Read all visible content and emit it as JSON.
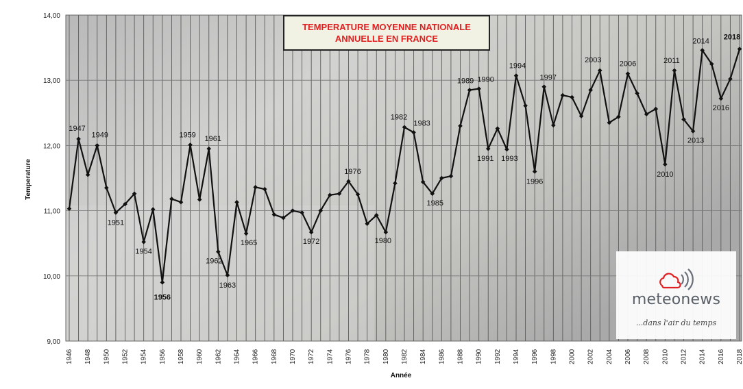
{
  "chart_data": {
    "type": "line",
    "title_lines": [
      "TEMPERATURE MOYENNE NATIONALE",
      "ANNUELLE EN FRANCE"
    ],
    "xlabel": "Année",
    "ylabel": "Temperature",
    "ylim": [
      9,
      14
    ],
    "yticks": [
      "9,00",
      "10,00",
      "11,00",
      "12,00",
      "13,00",
      "14,00"
    ],
    "grid": true,
    "x": [
      1946,
      1947,
      1948,
      1949,
      1950,
      1951,
      1952,
      1953,
      1954,
      1955,
      1956,
      1957,
      1958,
      1959,
      1960,
      1961,
      1962,
      1963,
      1964,
      1965,
      1966,
      1967,
      1968,
      1969,
      1970,
      1971,
      1972,
      1973,
      1974,
      1975,
      1976,
      1977,
      1978,
      1979,
      1980,
      1981,
      1982,
      1983,
      1984,
      1985,
      1986,
      1987,
      1988,
      1989,
      1990,
      1991,
      1992,
      1993,
      1994,
      1995,
      1996,
      1997,
      1998,
      1999,
      2000,
      2001,
      2002,
      2003,
      2004,
      2005,
      2006,
      2007,
      2008,
      2009,
      2010,
      2011,
      2012,
      2013,
      2014,
      2015,
      2016,
      2017,
      2018
    ],
    "series": [
      {
        "values": [
          11.03,
          12.1,
          11.55,
          12.0,
          11.35,
          10.97,
          11.1,
          11.26,
          10.52,
          11.02,
          9.9,
          11.18,
          11.13,
          12.01,
          11.17,
          11.95,
          10.37,
          10.01,
          11.13,
          10.65,
          11.36,
          11.33,
          10.94,
          10.89,
          11.0,
          10.97,
          10.67,
          11.0,
          11.24,
          11.26,
          11.45,
          11.25,
          10.8,
          10.93,
          10.67,
          11.42,
          12.28,
          12.2,
          11.44,
          11.26,
          11.5,
          11.53,
          12.3,
          12.85,
          12.87,
          11.95,
          12.26,
          11.94,
          13.07,
          12.61,
          11.6,
          12.9,
          12.31,
          12.77,
          12.74,
          12.45,
          12.85,
          13.15,
          12.35,
          12.44,
          13.1,
          12.8,
          12.48,
          12.56,
          11.71,
          13.15,
          12.4,
          12.22,
          13.46,
          13.25,
          12.72,
          13.02,
          13.48
        ]
      }
    ],
    "annotations": [
      {
        "year": 1947,
        "label": "1947",
        "color": "#111111"
      },
      {
        "year": 1949,
        "label": "1949",
        "color": "#111111"
      },
      {
        "year": 1951,
        "label": "1951",
        "color": "#111111"
      },
      {
        "year": 1954,
        "label": "1954",
        "color": "#111111"
      },
      {
        "year": 1956,
        "label": "1956",
        "color": "#2244cc"
      },
      {
        "year": 1959,
        "label": "1959",
        "color": "#111111"
      },
      {
        "year": 1961,
        "label": "1961",
        "color": "#111111"
      },
      {
        "year": 1962,
        "label": "1962",
        "color": "#111111"
      },
      {
        "year": 1963,
        "label": "1963",
        "color": "#111111"
      },
      {
        "year": 1965,
        "label": "1965",
        "color": "#111111"
      },
      {
        "year": 1972,
        "label": "1972",
        "color": "#111111"
      },
      {
        "year": 1976,
        "label": "1976",
        "color": "#111111"
      },
      {
        "year": 1980,
        "label": "1980",
        "color": "#111111"
      },
      {
        "year": 1982,
        "label": "1982",
        "color": "#111111"
      },
      {
        "year": 1983,
        "label": "1983",
        "color": "#111111"
      },
      {
        "year": 1985,
        "label": "1985",
        "color": "#111111"
      },
      {
        "year": 1989,
        "label": "1989",
        "color": "#111111"
      },
      {
        "year": 1990,
        "label": "1990",
        "color": "#111111"
      },
      {
        "year": 1991,
        "label": "1991",
        "color": "#111111"
      },
      {
        "year": 1993,
        "label": "1993",
        "color": "#111111"
      },
      {
        "year": 1994,
        "label": "1994",
        "color": "#111111"
      },
      {
        "year": 1996,
        "label": "1996",
        "color": "#111111"
      },
      {
        "year": 1997,
        "label": "1997",
        "color": "#111111"
      },
      {
        "year": 2003,
        "label": "2003",
        "color": "#111111"
      },
      {
        "year": 2006,
        "label": "2006",
        "color": "#111111"
      },
      {
        "year": 2010,
        "label": "2010",
        "color": "#111111"
      },
      {
        "year": 2011,
        "label": "2011",
        "color": "#111111"
      },
      {
        "year": 2013,
        "label": "2013",
        "color": "#111111"
      },
      {
        "year": 2014,
        "label": "2014",
        "color": "#111111"
      },
      {
        "year": 2016,
        "label": "2016",
        "color": "#111111"
      },
      {
        "year": 2018,
        "label": "2018",
        "color": "#e02020"
      }
    ],
    "colors": {
      "line": "#111111",
      "marker": "#111111",
      "plot_background": "#c4c4c4",
      "grid": "#5a5a5a",
      "title_text": "#e02020"
    }
  },
  "logo": {
    "name": "meteonews",
    "tagline": "...dans l'air du temps",
    "icon": "cloud-wifi-icon",
    "accent": "#e02020"
  }
}
